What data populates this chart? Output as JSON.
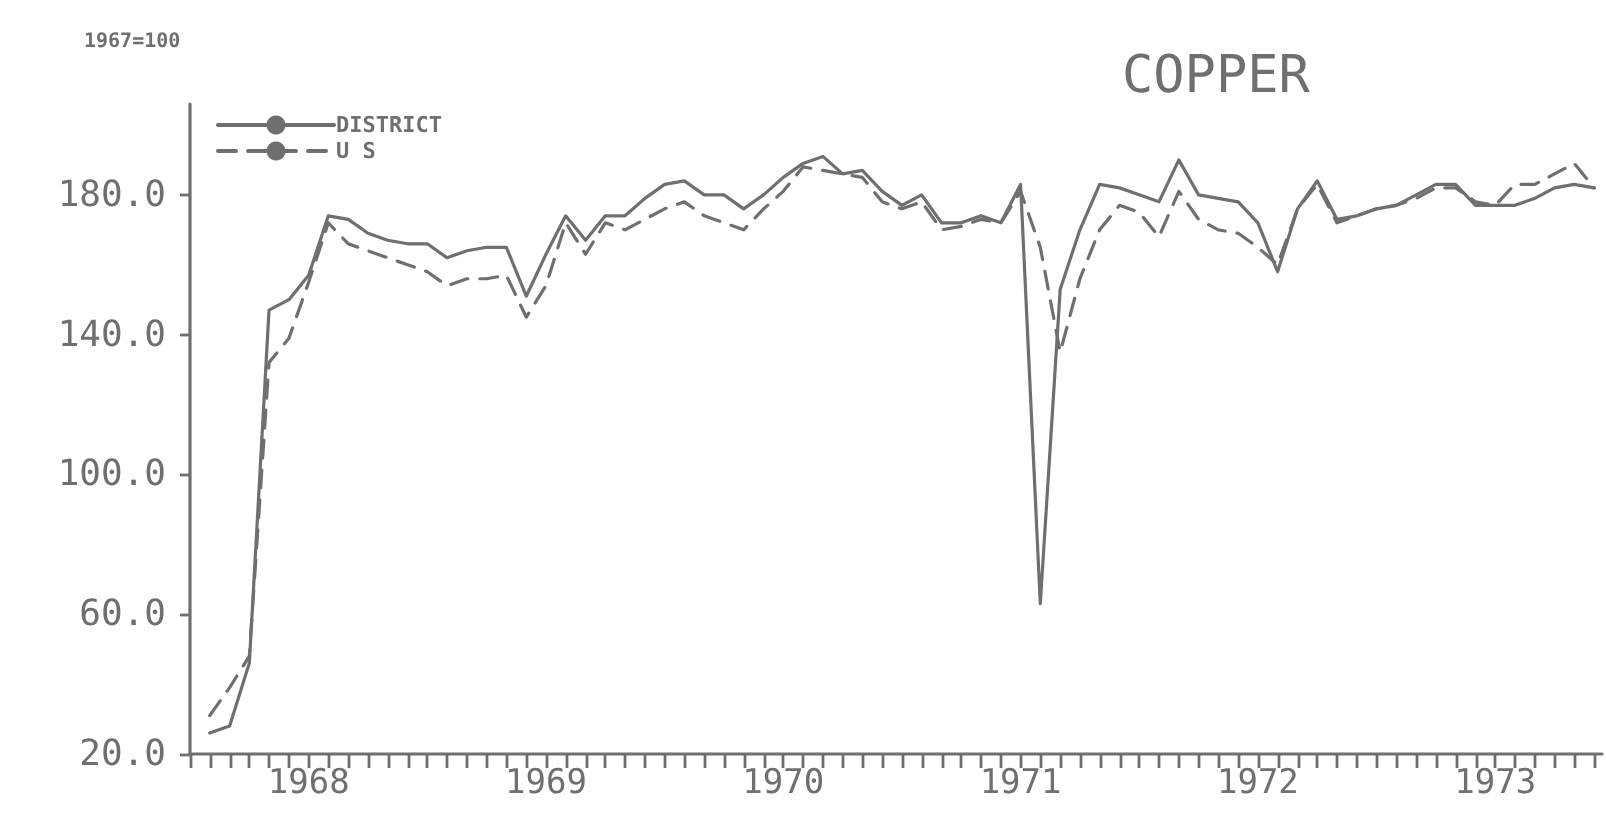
{
  "chart_data": {
    "type": "line",
    "title": "COPPER",
    "ylabel": "1967=100",
    "x": [
      1968.083,
      1968.167,
      1968.25,
      1968.333,
      1968.417,
      1968.5,
      1968.583,
      1968.667,
      1968.75,
      1968.833,
      1968.917,
      1969,
      1969.083,
      1969.167,
      1969.25,
      1969.333,
      1969.417,
      1969.5,
      1969.583,
      1969.667,
      1969.75,
      1969.833,
      1969.917,
      1970,
      1970.083,
      1970.167,
      1970.25,
      1970.333,
      1970.417,
      1970.5,
      1970.583,
      1970.667,
      1970.75,
      1970.833,
      1970.917,
      1971,
      1971.083,
      1971.167,
      1971.25,
      1971.333,
      1971.417,
      1971.5,
      1971.583,
      1971.667,
      1971.75,
      1971.833,
      1971.917,
      1972,
      1972.083,
      1972.167,
      1972.25,
      1972.333,
      1972.417,
      1972.5,
      1972.583,
      1972.667,
      1972.75,
      1972.833,
      1972.917,
      1973,
      1973.083,
      1973.167,
      1973.25,
      1973.333,
      1973.417,
      1973.5,
      1973.583,
      1973.667,
      1973.75,
      1973.833,
      1973.917
    ],
    "series": [
      {
        "name": "DISTRICT",
        "color": "#6e7070",
        "line_style": "solid",
        "values": [
          26,
          28,
          46,
          147,
          150,
          157,
          174,
          173,
          169,
          167,
          166,
          166,
          162,
          164,
          165,
          165,
          151,
          163,
          174,
          167,
          174,
          174,
          179,
          183,
          184,
          180,
          180,
          176,
          180,
          185,
          189,
          191,
          186,
          187,
          181,
          177,
          180,
          172,
          172,
          174,
          172,
          183,
          63,
          153,
          170,
          183,
          182,
          180,
          178,
          190,
          180,
          179,
          178,
          172,
          158,
          176,
          184,
          173,
          174,
          176,
          177,
          180,
          183,
          183,
          177,
          177,
          177,
          179,
          182,
          183,
          182
        ]
      },
      {
        "name": "U S",
        "color": "#6e7070",
        "line_style": "dashed",
        "values": [
          31,
          39,
          48,
          132,
          139,
          155,
          172,
          166,
          164,
          162,
          160,
          158,
          154,
          156,
          156,
          157,
          145,
          154,
          172,
          163,
          172,
          170,
          173,
          176,
          178,
          174,
          172,
          170,
          176,
          181,
          188,
          187,
          186,
          185,
          178,
          176,
          178,
          170,
          171,
          173,
          172,
          181,
          165,
          135,
          156,
          170,
          177,
          175,
          168,
          181,
          173,
          170,
          169,
          165,
          160,
          176,
          183,
          172,
          174,
          176,
          177,
          179,
          182,
          182,
          178,
          177,
          183,
          183,
          186,
          189,
          182
        ]
      }
    ],
    "xlim": [
      1968,
      1973.95
    ],
    "xticks": [
      {
        "value": 1968,
        "label": null
      },
      {
        "value": 1968.083,
        "label": null
      },
      {
        "value": 1968.167,
        "label": null
      },
      {
        "value": 1968.25,
        "label": null
      },
      {
        "value": 1968.333,
        "label": null
      },
      {
        "value": 1968.417,
        "label": null
      },
      {
        "value": 1968.5,
        "label": "1968"
      },
      {
        "value": 1968.583,
        "label": null
      },
      {
        "value": 1968.667,
        "label": null
      },
      {
        "value": 1968.75,
        "label": null
      },
      {
        "value": 1968.833,
        "label": null
      },
      {
        "value": 1968.917,
        "label": null
      },
      {
        "value": 1969,
        "label": null
      },
      {
        "value": 1969.083,
        "label": null
      },
      {
        "value": 1969.167,
        "label": null
      },
      {
        "value": 1969.25,
        "label": null
      },
      {
        "value": 1969.333,
        "label": null
      },
      {
        "value": 1969.417,
        "label": null
      },
      {
        "value": 1969.5,
        "label": "1969"
      },
      {
        "value": 1969.583,
        "label": null
      },
      {
        "value": 1969.667,
        "label": null
      },
      {
        "value": 1969.75,
        "label": null
      },
      {
        "value": 1969.833,
        "label": null
      },
      {
        "value": 1969.917,
        "label": null
      },
      {
        "value": 1970,
        "label": null
      },
      {
        "value": 1970.083,
        "label": null
      },
      {
        "value": 1970.167,
        "label": null
      },
      {
        "value": 1970.25,
        "label": null
      },
      {
        "value": 1970.333,
        "label": null
      },
      {
        "value": 1970.417,
        "label": null
      },
      {
        "value": 1970.5,
        "label": "1970"
      },
      {
        "value": 1970.583,
        "label": null
      },
      {
        "value": 1970.667,
        "label": null
      },
      {
        "value": 1970.75,
        "label": null
      },
      {
        "value": 1970.833,
        "label": null
      },
      {
        "value": 1970.917,
        "label": null
      },
      {
        "value": 1971,
        "label": null
      },
      {
        "value": 1971.083,
        "label": null
      },
      {
        "value": 1971.167,
        "label": null
      },
      {
        "value": 1971.25,
        "label": null
      },
      {
        "value": 1971.333,
        "label": null
      },
      {
        "value": 1971.417,
        "label": null
      },
      {
        "value": 1971.5,
        "label": "1971"
      },
      {
        "value": 1971.583,
        "label": null
      },
      {
        "value": 1971.667,
        "label": null
      },
      {
        "value": 1971.75,
        "label": null
      },
      {
        "value": 1971.833,
        "label": null
      },
      {
        "value": 1971.917,
        "label": null
      },
      {
        "value": 1972,
        "label": null
      },
      {
        "value": 1972.083,
        "label": null
      },
      {
        "value": 1972.167,
        "label": null
      },
      {
        "value": 1972.25,
        "label": null
      },
      {
        "value": 1972.333,
        "label": null
      },
      {
        "value": 1972.417,
        "label": null
      },
      {
        "value": 1972.5,
        "label": "1972"
      },
      {
        "value": 1972.583,
        "label": null
      },
      {
        "value": 1972.667,
        "label": null
      },
      {
        "value": 1972.75,
        "label": null
      },
      {
        "value": 1972.833,
        "label": null
      },
      {
        "value": 1972.917,
        "label": null
      },
      {
        "value": 1973,
        "label": null
      },
      {
        "value": 1973.083,
        "label": null
      },
      {
        "value": 1973.167,
        "label": null
      },
      {
        "value": 1973.25,
        "label": null
      },
      {
        "value": 1973.333,
        "label": null
      },
      {
        "value": 1973.417,
        "label": null
      },
      {
        "value": 1973.5,
        "label": "1973"
      },
      {
        "value": 1973.583,
        "label": null
      },
      {
        "value": 1973.667,
        "label": null
      },
      {
        "value": 1973.75,
        "label": null
      },
      {
        "value": 1973.833,
        "label": null
      },
      {
        "value": 1973.917,
        "label": null
      }
    ],
    "ylim": [
      20,
      206
    ],
    "yticks": [
      {
        "value": 20,
        "label": "20.0"
      },
      {
        "value": 60,
        "label": "60.0"
      },
      {
        "value": 100,
        "label": "100.0"
      },
      {
        "value": 140,
        "label": "140.0"
      },
      {
        "value": 180,
        "label": "180.0"
      }
    ],
    "grid": false,
    "legend": "top left",
    "marker": "none"
  }
}
